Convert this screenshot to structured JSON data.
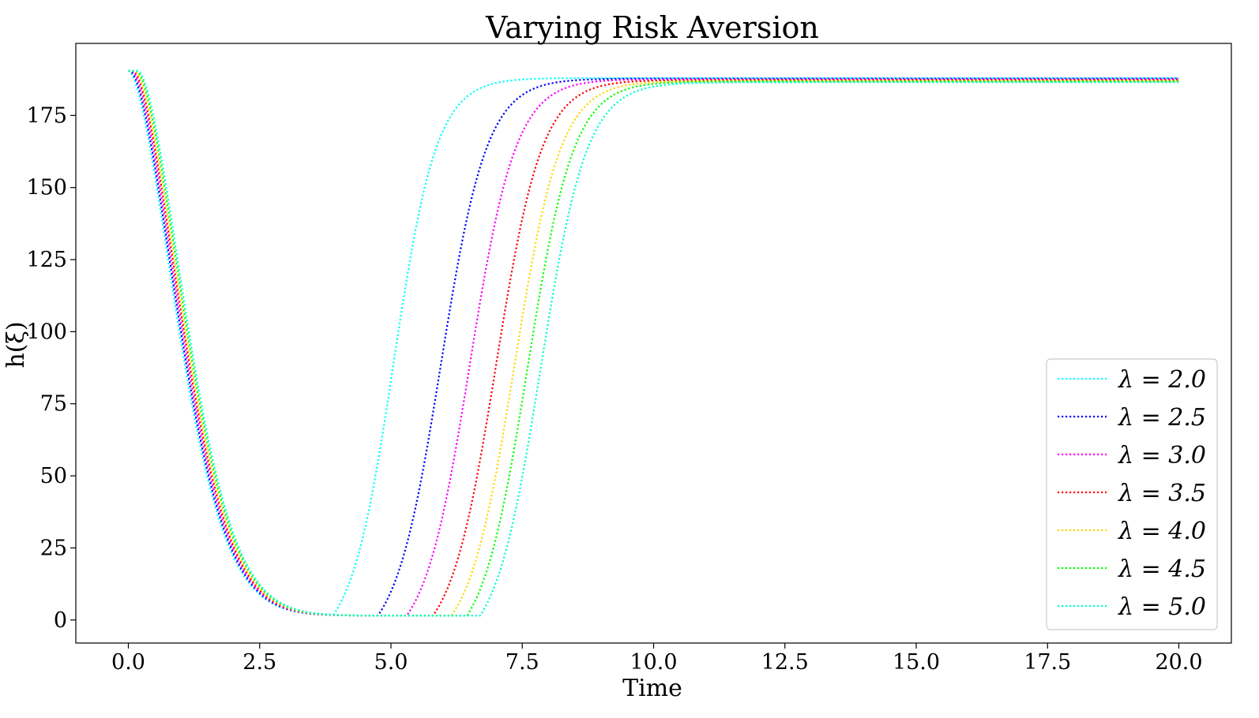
{
  "chart_data": {
    "type": "line",
    "title": "Varying Risk Aversion",
    "xlabel": "Time",
    "ylabel": "h(ξ)",
    "xlim": [
      -1.0,
      21.0
    ],
    "ylim": [
      -8,
      200
    ],
    "xticks": [
      0.0,
      2.5,
      5.0,
      7.5,
      10.0,
      12.5,
      15.0,
      17.5,
      20.0
    ],
    "xtick_labels": [
      "0.0",
      "2.5",
      "5.0",
      "7.5",
      "10.0",
      "12.5",
      "15.0",
      "17.5",
      "20.0"
    ],
    "yticks": [
      0,
      25,
      50,
      75,
      100,
      125,
      150,
      175
    ],
    "ytick_labels": [
      "0",
      "25",
      "50",
      "75",
      "100",
      "125",
      "150",
      "175"
    ],
    "grid": false,
    "legend_position": "lower-right",
    "line_style": "dotted",
    "series": [
      {
        "name": "λ = 2.0",
        "color": "#00ffff",
        "lag": 0.0,
        "min_time": 3.9,
        "rise_mid": 5.05,
        "rise_width": 0.75,
        "tail_scale": 3.9,
        "final": 188.0
      },
      {
        "name": "λ = 2.5",
        "color": "#0000ff",
        "lag": 0.03,
        "min_time": 4.75,
        "rise_mid": 5.95,
        "rise_width": 0.8,
        "tail_scale": 3.3,
        "final": 187.8
      },
      {
        "name": "λ = 3.0",
        "color": "#ff00ff",
        "lag": 0.06,
        "min_time": 5.3,
        "rise_mid": 6.5,
        "rise_width": 0.8,
        "tail_scale": 3.2,
        "final": 187.6
      },
      {
        "name": "λ = 3.5",
        "color": "#ff0000",
        "lag": 0.09,
        "min_time": 5.8,
        "rise_mid": 7.0,
        "rise_width": 0.8,
        "tail_scale": 3.1,
        "final": 187.3
      },
      {
        "name": "λ = 4.0",
        "color": "#ffd700",
        "lag": 0.12,
        "min_time": 6.15,
        "rise_mid": 7.35,
        "rise_width": 0.8,
        "tail_scale": 3.0,
        "final": 187.0
      },
      {
        "name": "λ = 4.5",
        "color": "#00ff00",
        "lag": 0.15,
        "min_time": 6.45,
        "rise_mid": 7.6,
        "rise_width": 0.8,
        "tail_scale": 2.9,
        "final": 186.8
      },
      {
        "name": "λ = 5.0",
        "color": "#00ffcc",
        "lag": 0.18,
        "min_time": 6.7,
        "rise_mid": 7.85,
        "rise_width": 0.8,
        "tail_scale": 2.8,
        "final": 186.5
      }
    ],
    "start_value": 190.5,
    "min_value": 1.5
  }
}
